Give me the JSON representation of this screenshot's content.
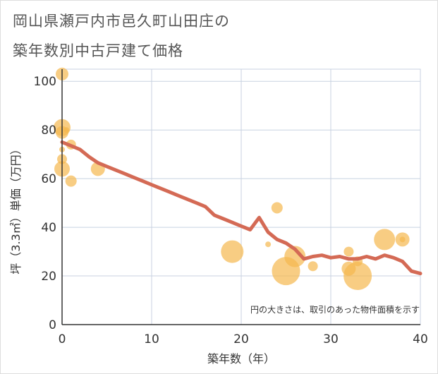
{
  "title_line1": "岡山県瀬戸内市邑久町山田庄の",
  "title_line2": "築年数別中古戸建て価格",
  "chart_data": {
    "type": "scatter",
    "title": "岡山県瀬戸内市邑久町山田庄の築年数別中古戸建て価格",
    "xlabel": "築年数（年）",
    "ylabel": "坪（3.3㎡）単価（万円）",
    "xlim": [
      0,
      40
    ],
    "ylim": [
      0,
      105
    ],
    "xticks": [
      0,
      10,
      20,
      30,
      40
    ],
    "yticks": [
      0,
      20,
      40,
      60,
      80,
      100
    ],
    "grid": true,
    "note": "円の大きさは、取引のあった物件面積を示す",
    "colors": {
      "bubble": "#f5b84e",
      "line": "#d46a55",
      "grid": "#c8d2e0",
      "axis": "#333333"
    },
    "scatter_points": [
      {
        "x": 0,
        "y": 103,
        "size": 9
      },
      {
        "x": 0,
        "y": 81,
        "size": 12
      },
      {
        "x": 0,
        "y": 79,
        "size": 9
      },
      {
        "x": 0.5,
        "y": 80,
        "size": 4
      },
      {
        "x": 0,
        "y": 72,
        "size": 4
      },
      {
        "x": 0,
        "y": 68,
        "size": 7
      },
      {
        "x": 0,
        "y": 64,
        "size": 11
      },
      {
        "x": 1,
        "y": 74,
        "size": 7
      },
      {
        "x": 1,
        "y": 59,
        "size": 8
      },
      {
        "x": 4,
        "y": 64,
        "size": 10
      },
      {
        "x": 19,
        "y": 30,
        "size": 16
      },
      {
        "x": 23,
        "y": 33,
        "size": 4
      },
      {
        "x": 24,
        "y": 48,
        "size": 8
      },
      {
        "x": 25,
        "y": 22,
        "size": 20
      },
      {
        "x": 26,
        "y": 28,
        "size": 15
      },
      {
        "x": 28,
        "y": 24,
        "size": 7
      },
      {
        "x": 32,
        "y": 30,
        "size": 7
      },
      {
        "x": 32,
        "y": 23,
        "size": 10
      },
      {
        "x": 33,
        "y": 26,
        "size": 7
      },
      {
        "x": 33,
        "y": 20,
        "size": 20
      },
      {
        "x": 36,
        "y": 35,
        "size": 15
      },
      {
        "x": 38,
        "y": 35,
        "size": 10
      },
      {
        "x": 38,
        "y": 35,
        "size": 4
      }
    ],
    "trend_line": {
      "x": [
        0,
        1,
        2,
        3,
        4,
        5,
        6,
        7,
        8,
        9,
        10,
        11,
        12,
        13,
        14,
        15,
        16,
        17,
        18,
        19,
        20,
        21,
        22,
        23,
        24,
        25,
        26,
        27,
        28,
        29,
        30,
        31,
        32,
        33,
        34,
        35,
        36,
        37,
        38,
        39,
        40
      ],
      "y": [
        75,
        73.5,
        72,
        69,
        66.5,
        65,
        63.5,
        62,
        60.5,
        59,
        57.5,
        56,
        54.5,
        53,
        51.5,
        50,
        48.5,
        45,
        43.5,
        42,
        40.5,
        39,
        44,
        38,
        35,
        33.5,
        31,
        27,
        28,
        28.5,
        27.5,
        28,
        27,
        27,
        28,
        27,
        28.5,
        27.5,
        26,
        22,
        21
      ]
    }
  }
}
